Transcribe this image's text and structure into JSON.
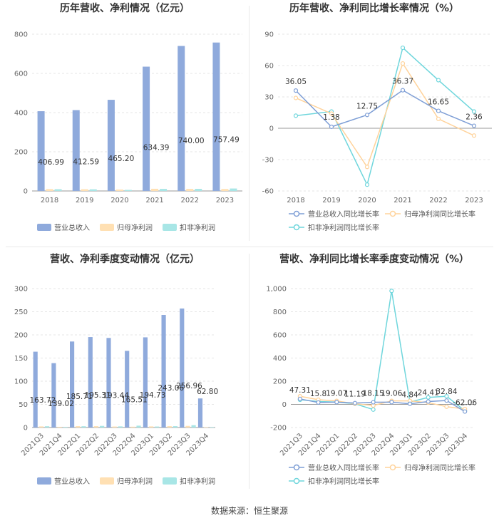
{
  "source_label": "数据来源：恒生聚源",
  "colors": {
    "revenue": "#8faadc",
    "net_profit": "#ffe0b3",
    "deducted_profit": "#a8e6e6",
    "revenue_line": "#7f9fd6",
    "net_profit_line": "#ffd39b",
    "deducted_profit_line": "#6fd6dc",
    "grid": "#e6e6e6",
    "axis": "#999999"
  },
  "chart_data": [
    {
      "type": "bar",
      "title": "历年营收、净利情况（亿元）",
      "categories": [
        "2018",
        "2019",
        "2020",
        "2021",
        "2022",
        "2023"
      ],
      "ylim": [
        0,
        800
      ],
      "yticks": [
        0,
        200,
        400,
        600,
        800
      ],
      "series": [
        {
          "name": "营业总收入",
          "values": [
            406.99,
            412.59,
            465.2,
            634.39,
            740.0,
            757.49
          ],
          "labels": [
            "406.99",
            "412.59",
            "465.20",
            "634.39",
            "740.00",
            "757.49"
          ]
        },
        {
          "name": "归母净利润",
          "values": [
            9.5,
            8.8,
            7.2,
            11.2,
            10.5,
            10.0
          ]
        },
        {
          "name": "扣非净利润",
          "values": [
            9.0,
            8.5,
            5.5,
            10.5,
            10.8,
            12.5
          ]
        }
      ],
      "legend": "bottom"
    },
    {
      "type": "line",
      "title": "历年营收、净利同比增长率情况（%）",
      "categories": [
        "2018",
        "2019",
        "2020",
        "2021",
        "2022",
        "2023"
      ],
      "ylim": [
        -60,
        90
      ],
      "yticks": [
        -60,
        -30,
        0,
        30,
        60,
        90
      ],
      "series": [
        {
          "name": "营业总收入同比增长率",
          "values": [
            36.05,
            1.38,
            12.75,
            36.37,
            16.65,
            2.36
          ],
          "labels": [
            "36.05",
            "1.38",
            "12.75",
            "36.37",
            "16.65",
            "2.36"
          ]
        },
        {
          "name": "归母净利润同比增长率",
          "values": [
            29,
            14,
            -37,
            62,
            9,
            -7
          ]
        },
        {
          "name": "扣非净利润同比增长率",
          "values": [
            12,
            16,
            -54,
            77,
            46,
            16
          ]
        }
      ],
      "legend": "bottom"
    },
    {
      "type": "bar",
      "title": "营收、净利季度变动情况（亿元）",
      "categories": [
        "2021Q3",
        "2021Q4",
        "2022Q1",
        "2022Q2",
        "2022Q3",
        "2022Q4",
        "2023Q1",
        "2023Q2",
        "2023Q3",
        "2023Q4"
      ],
      "ylim": [
        0,
        300
      ],
      "yticks": [
        0,
        50,
        100,
        150,
        200,
        250,
        300
      ],
      "series": [
        {
          "name": "营业总收入",
          "values": [
            163.72,
            139.02,
            185.71,
            195.31,
            193.44,
            165.51,
            194.73,
            243.06,
            256.96,
            62.8
          ],
          "labels": [
            "163.72",
            "139.02",
            "185.71",
            "195.31",
            "193.44",
            "165.51",
            "194.73",
            "243.06",
            "256.96",
            "62.80"
          ]
        },
        {
          "name": "归母净利润",
          "values": [
            2.5,
            1.5,
            3.0,
            3.0,
            2.2,
            1.8,
            2.5,
            3.0,
            3.5,
            0.8
          ]
        },
        {
          "name": "扣非净利润",
          "values": [
            2.8,
            1.2,
            2.8,
            3.5,
            2.5,
            4.0,
            2.2,
            3.0,
            5.0,
            1.0
          ]
        }
      ],
      "legend": "bottom"
    },
    {
      "type": "line",
      "title": "营收、净利同比增长率季度变动情况（%）",
      "categories": [
        "2021Q3",
        "2021Q4",
        "2022Q1",
        "2022Q2",
        "2022Q3",
        "2022Q4",
        "2023Q1",
        "2023Q2",
        "2023Q3",
        "2023Q4"
      ],
      "ylim": [
        -200,
        1000
      ],
      "yticks": [
        -200,
        0,
        200,
        400,
        600,
        800,
        1000
      ],
      "ytick_labels": [
        "-200",
        "0",
        "200",
        "400",
        "600",
        "800",
        "1,000"
      ],
      "series": [
        {
          "name": "营业总收入同比增长率",
          "values": [
            47.31,
            15.8,
            19.07,
            11.19,
            18.15,
            19.06,
            4.84,
            24.41,
            32.84,
            -62.06
          ],
          "labels": [
            "47.31",
            "15.8",
            "19.07",
            "11.19",
            "18.15",
            "19.06",
            "4.84",
            "24.41",
            "32.84",
            "-62.06"
          ]
        },
        {
          "name": "归母净利润同比增长率",
          "values": [
            70,
            40,
            30,
            5,
            -10,
            30,
            30,
            15,
            -20,
            -40
          ]
        },
        {
          "name": "扣非净利润同比增长率",
          "values": [
            40,
            25,
            20,
            5,
            -45,
            980,
            20,
            60,
            70,
            -55
          ]
        }
      ],
      "legend": "bottom"
    }
  ]
}
